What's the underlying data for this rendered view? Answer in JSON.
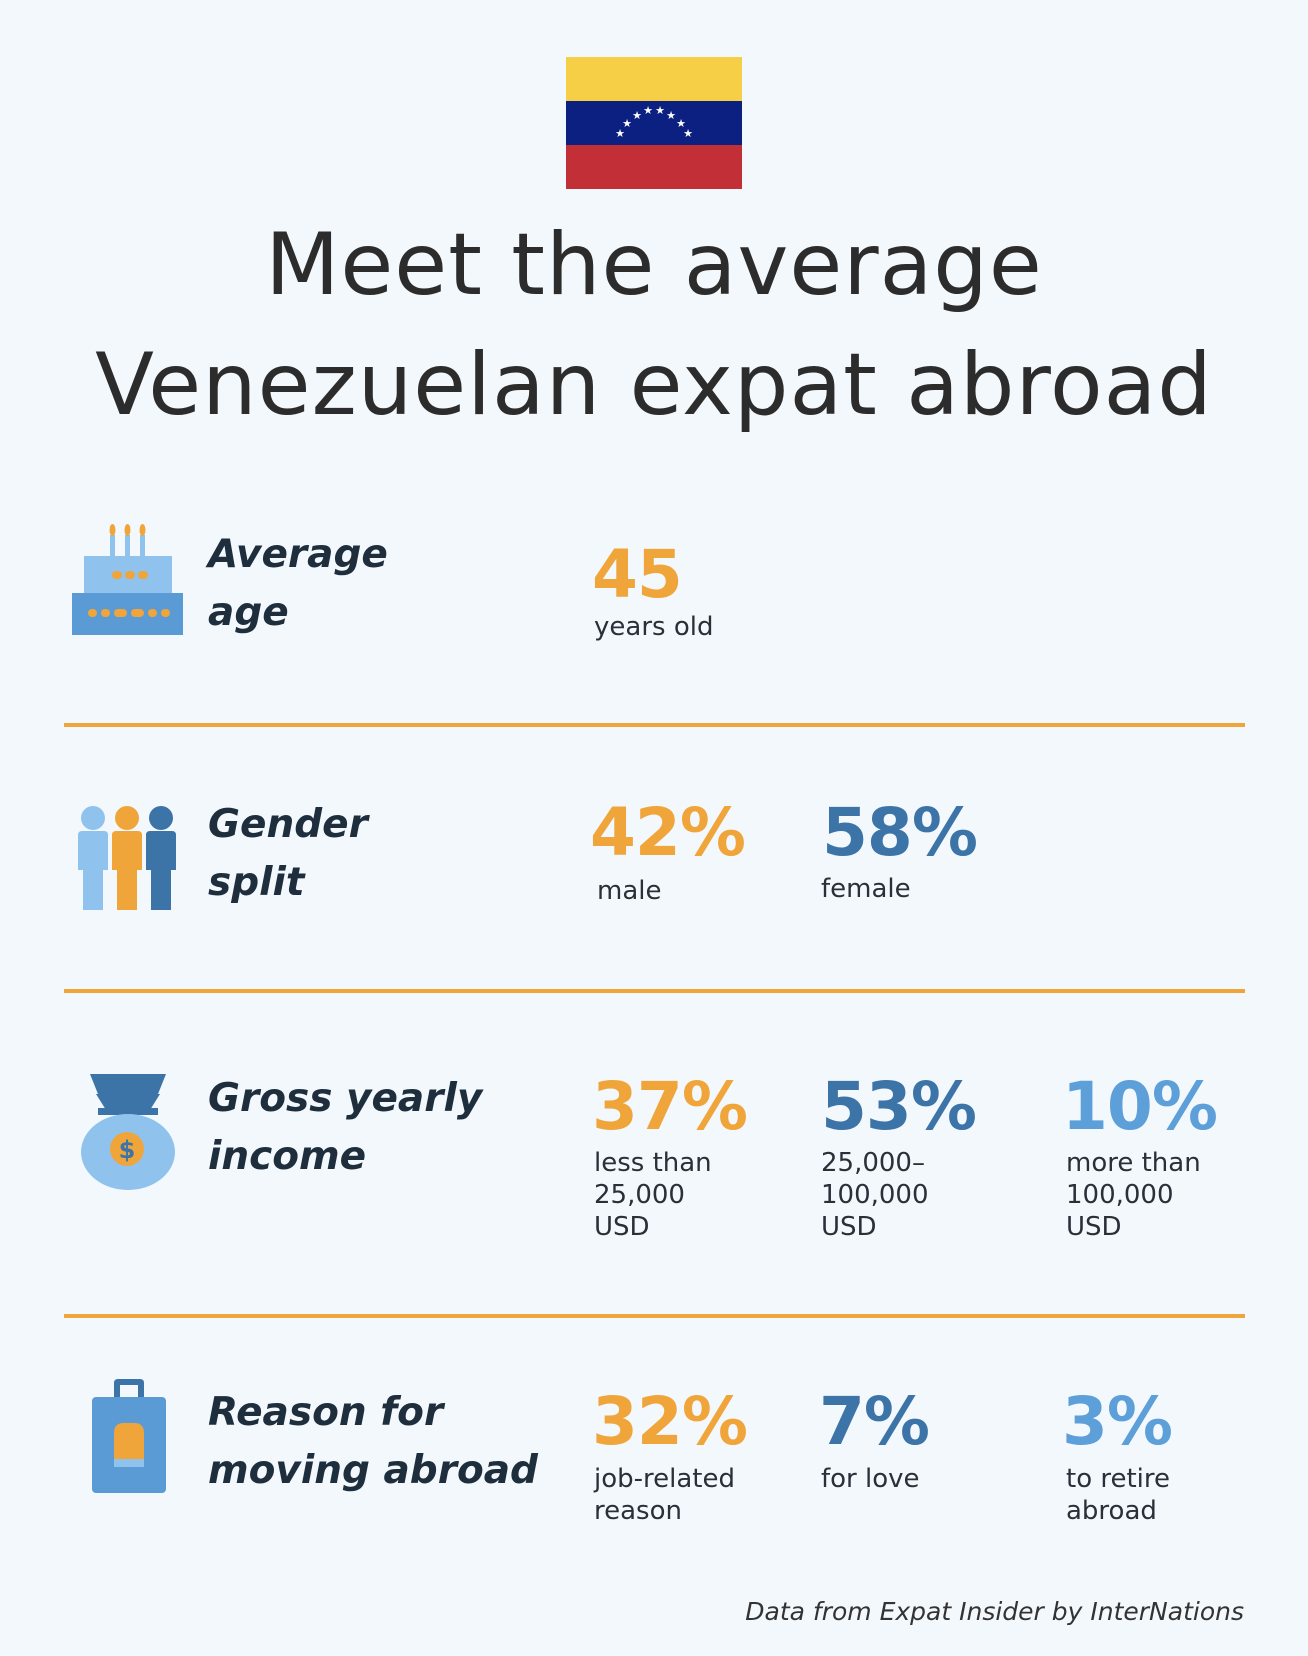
{
  "header": {
    "flag_icon": "venezuela-flag-icon",
    "title_line1": "Meet the average",
    "title_line2": "Venezuelan expat abroad"
  },
  "colors": {
    "accent_orange": "#f0a53a",
    "accent_blue": "#3c74a8",
    "accent_light_blue": "#5d9fd8",
    "background": "#f3f8fd"
  },
  "rows": {
    "age": {
      "icon": "birthday-cake-icon",
      "label_line1": "Average",
      "label_line2": "age",
      "stats": [
        {
          "value": "45",
          "caption": "years old"
        }
      ]
    },
    "gender": {
      "icon": "people-icon",
      "label_line1": "Gender",
      "label_line2": "split",
      "stats": [
        {
          "value": "42%",
          "caption": "male"
        },
        {
          "value": "58%",
          "caption": "female"
        }
      ]
    },
    "income": {
      "icon": "money-bag-icon",
      "label_line1": "Gross yearly",
      "label_line2": "income",
      "stats": [
        {
          "value": "37%",
          "caption_line1": "less than",
          "caption_line2": "25,000",
          "caption_line3": "USD"
        },
        {
          "value": "53%",
          "caption_line1": "25,000–",
          "caption_line2": "100,000",
          "caption_line3": "USD"
        },
        {
          "value": "10%",
          "caption_line1": "more than",
          "caption_line2": "100,000",
          "caption_line3": "USD"
        }
      ]
    },
    "reason": {
      "icon": "suitcase-icon",
      "label_line1": "Reason for",
      "label_line2": "moving abroad",
      "stats": [
        {
          "value": "32%",
          "caption_line1": "job-related",
          "caption_line2": "reason"
        },
        {
          "value": "7%",
          "caption_line1": "for love"
        },
        {
          "value": "3%",
          "caption_line1": "to retire",
          "caption_line2": "abroad"
        }
      ]
    }
  },
  "footer": {
    "source": "Data from Expat Insider by InterNations"
  }
}
